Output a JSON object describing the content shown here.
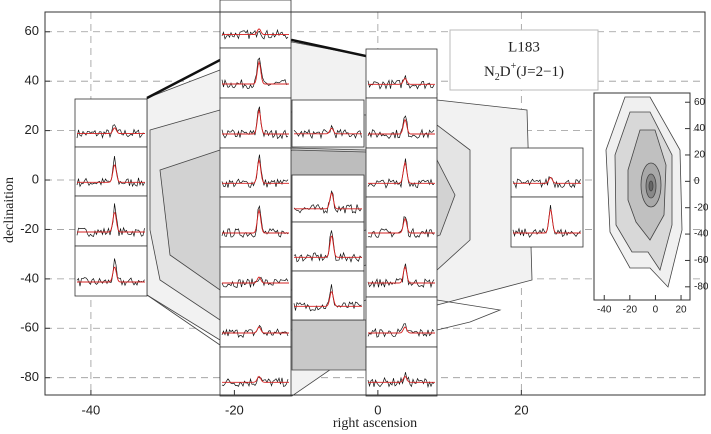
{
  "chart_data": [
    {
      "type": "contour",
      "title": "L183",
      "subtitle": {
        "base": "N",
        "sub": "2",
        "mid": "D",
        "sup": "+",
        "tail": "(J=2−1)"
      },
      "x_label": "right ascension",
      "y_label": "declinaition",
      "xlim": [
        -46.4,
        45.6
      ],
      "ylim": [
        -87,
        68
      ],
      "xticks": [
        -40,
        -20,
        0,
        20
      ],
      "yticks": [
        -80,
        -60,
        -40,
        -20,
        0,
        20,
        40,
        60
      ],
      "grid": true
    },
    {
      "type": "contour",
      "xlim": [
        -48,
        27
      ],
      "ylim": [
        -90,
        67
      ],
      "xticks": [
        -40,
        -20,
        0,
        20
      ],
      "yticks": [
        -80,
        -60,
        -40,
        -20,
        0,
        20,
        40,
        60
      ],
      "grid": false
    }
  ]
}
